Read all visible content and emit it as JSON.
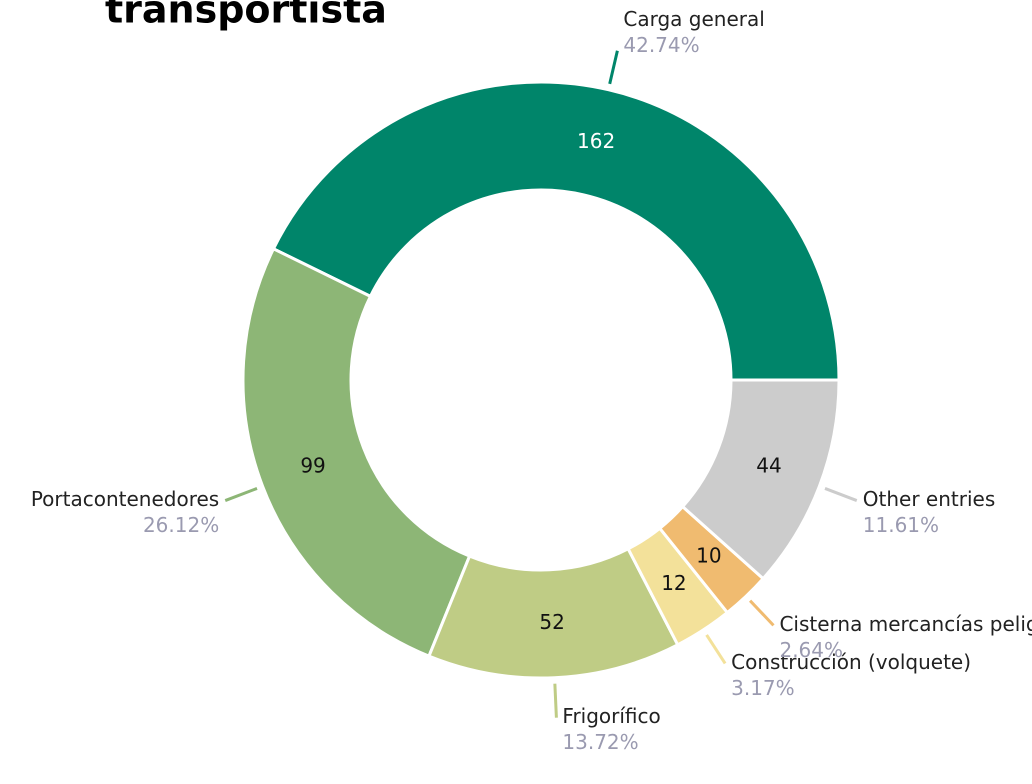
{
  "chart_data": {
    "type": "donut",
    "title": "transportista",
    "categories": [
      "Carga general",
      "Portacontenedores",
      "Frigorífico",
      "Construcción (volquete)",
      "Cisterna mercancías peligrosas",
      "Other entries"
    ],
    "values": [
      162,
      99,
      52,
      12,
      10,
      44
    ],
    "percent_labels": [
      "42.74%",
      "26.12%",
      "13.72%",
      "3.17%",
      "2.64%",
      "11.61%"
    ],
    "colors": [
      "#00856a",
      "#8db676",
      "#bfcc85",
      "#f3e19a",
      "#f0bb70",
      "#cccccc"
    ]
  }
}
